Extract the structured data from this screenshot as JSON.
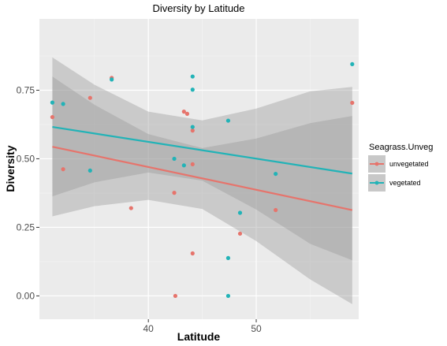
{
  "chart_data": {
    "type": "scatter",
    "title": "Diversity by Latitude",
    "xlabel": "Latitude",
    "ylabel": "Diversity",
    "xlim": [
      29.9,
      59.5
    ],
    "ylim": [
      -0.085,
      1.01
    ],
    "x_ticks": [
      40,
      50
    ],
    "x_tick_labels": [
      "40",
      "50"
    ],
    "y_ticks": [
      0,
      0.25,
      0.5,
      0.75
    ],
    "y_tick_labels": [
      "0.00",
      "0.25",
      "0.50",
      "0.75"
    ],
    "grid": true,
    "legend": {
      "title": "Seagrass.Unveg",
      "position": "right"
    },
    "series": [
      {
        "name": "unvegetated",
        "color": "#E6746C",
        "points": [
          [
            31.1,
            0.652
          ],
          [
            32.1,
            0.462
          ],
          [
            34.6,
            0.722
          ],
          [
            36.6,
            0.795
          ],
          [
            38.4,
            0.32
          ],
          [
            42.4,
            0.376
          ],
          [
            42.5,
            0.0
          ],
          [
            43.3,
            0.672
          ],
          [
            43.6,
            0.664
          ],
          [
            44.1,
            0.603
          ],
          [
            44.1,
            0.48
          ],
          [
            44.1,
            0.155
          ],
          [
            48.5,
            0.227
          ],
          [
            51.8,
            0.313
          ],
          [
            58.9,
            0.704
          ]
        ],
        "fit": {
          "x": [
            31.1,
            35.0,
            40.0,
            45.0,
            50.0,
            55.0,
            58.9
          ],
          "y": [
            0.544,
            0.512,
            0.47,
            0.428,
            0.387,
            0.345,
            0.313
          ],
          "lower": [
            0.29,
            0.327,
            0.35,
            0.317,
            0.2,
            0.06,
            -0.03
          ],
          "upper": [
            0.8,
            0.697,
            0.59,
            0.539,
            0.574,
            0.63,
            0.656
          ]
        }
      },
      {
        "name": "vegetated",
        "color": "#22B3B7",
        "points": [
          [
            31.1,
            0.705
          ],
          [
            32.1,
            0.7
          ],
          [
            34.6,
            0.457
          ],
          [
            36.6,
            0.789
          ],
          [
            42.4,
            0.5
          ],
          [
            43.3,
            0.476
          ],
          [
            44.1,
            0.8
          ],
          [
            44.1,
            0.752
          ],
          [
            44.1,
            0.616
          ],
          [
            47.4,
            0.639
          ],
          [
            47.4,
            0.138
          ],
          [
            47.4,
            0.0
          ],
          [
            48.5,
            0.303
          ],
          [
            51.8,
            0.445
          ],
          [
            58.9,
            0.845
          ]
        ],
        "fit": {
          "x": [
            31.1,
            35.0,
            40.0,
            45.0,
            50.0,
            55.0,
            58.9
          ],
          "y": [
            0.616,
            0.592,
            0.561,
            0.53,
            0.499,
            0.468,
            0.446
          ],
          "lower": [
            0.363,
            0.414,
            0.45,
            0.42,
            0.315,
            0.19,
            0.13
          ],
          "upper": [
            0.87,
            0.77,
            0.672,
            0.64,
            0.683,
            0.746,
            0.762
          ]
        }
      }
    ]
  }
}
